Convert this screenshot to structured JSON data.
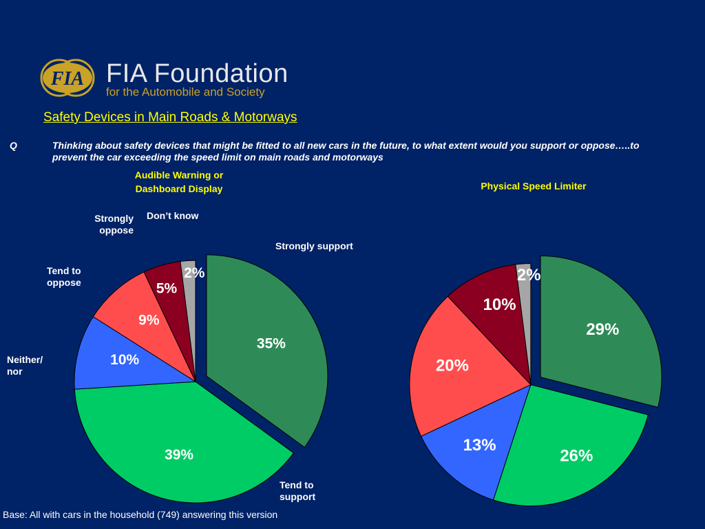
{
  "logo": {
    "emblem_text": "FIA",
    "name": "FIA Foundation",
    "tagline": "for the Automobile and Society"
  },
  "title": "Safety Devices in Main Roads & Motorways",
  "question": {
    "label": "Q",
    "text": "Thinking about safety devices that might be fitted to all new cars in the future, to what extent would you support or oppose…..to prevent the car exceeding the speed limit on main roads and motorways"
  },
  "categories": [
    "Strongly support",
    "Tend to support",
    "Neither/ nor",
    "Tend to oppose",
    "Strongly oppose",
    "Don’t know"
  ],
  "category_labels": {
    "strongly_support": "Strongly support",
    "tend_to_support": "Tend to support",
    "neither_nor": "Neither/ nor",
    "tend_to_oppose": "Tend to oppose",
    "strongly_oppose": "Strongly oppose",
    "dont_know": "Don’t know"
  },
  "colors": [
    "#2e8b57",
    "#00cc66",
    "#3366ff",
    "#ff4d4d",
    "#8b0020",
    "#a6a6a6"
  ],
  "chart_data": [
    {
      "type": "pie",
      "title": "Audible Warning or Dashboard Display",
      "categories": [
        "Strongly support",
        "Tend to support",
        "Neither/ nor",
        "Tend to oppose",
        "Strongly oppose",
        "Don’t know"
      ],
      "values": [
        35,
        39,
        10,
        9,
        5,
        2
      ],
      "labels": [
        "35%",
        "39%",
        "10%",
        "9%",
        "5%",
        "2%"
      ]
    },
    {
      "type": "pie",
      "title": "Physical Speed Limiter",
      "categories": [
        "Strongly support",
        "Tend to support",
        "Neither/ nor",
        "Tend to oppose",
        "Strongly oppose",
        "Don’t know"
      ],
      "values": [
        29,
        26,
        13,
        20,
        10,
        2
      ],
      "labels": [
        "29%",
        "26%",
        "13%",
        "20%",
        "10%",
        "2%"
      ]
    }
  ],
  "base_note": "Base: All with cars in the household (749) answering this version"
}
